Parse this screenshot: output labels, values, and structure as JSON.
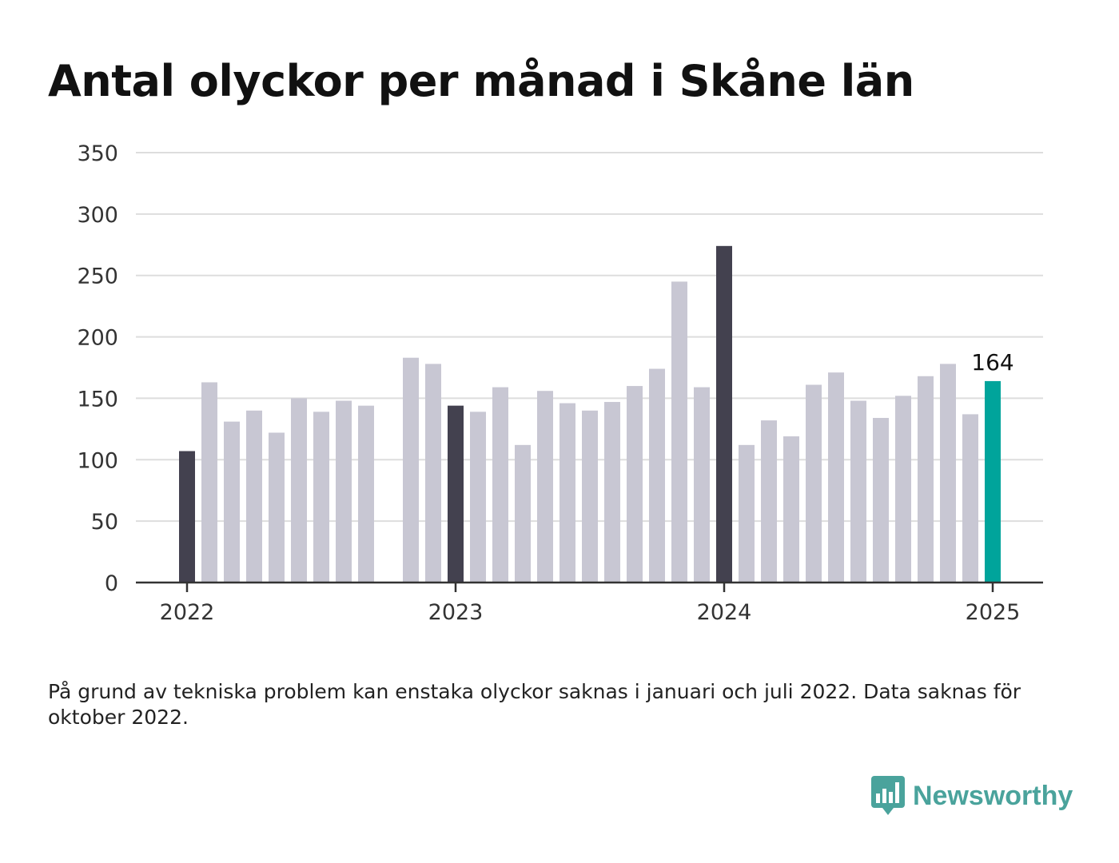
{
  "title": "Antal olyckor per månad i Skåne län",
  "note": "På grund av tekniska problem kan enstaka olyckor saknas i januari och juli 2022. Data saknas för oktober 2022.",
  "logo": {
    "text": "Newsworthy",
    "icon": "bar-chart-speech-icon"
  },
  "colors": {
    "january": "#43414f",
    "default": "#c8c7d3",
    "latest": "#00a49b",
    "grid": "#dddddd",
    "axis": "#333333"
  },
  "chart_data": {
    "type": "bar",
    "title": "Antal olyckor per månad i Skåne län",
    "xlabel": "",
    "ylabel": "",
    "ylim": [
      0,
      350
    ],
    "yticks": [
      0,
      50,
      100,
      150,
      200,
      250,
      300,
      350
    ],
    "xticks": [
      "2022",
      "2023",
      "2024",
      "2025"
    ],
    "grid": true,
    "categories": [
      "2022-01",
      "2022-02",
      "2022-03",
      "2022-04",
      "2022-05",
      "2022-06",
      "2022-07",
      "2022-08",
      "2022-09",
      "2022-10",
      "2022-11",
      "2022-12",
      "2023-01",
      "2023-02",
      "2023-03",
      "2023-04",
      "2023-05",
      "2023-06",
      "2023-07",
      "2023-08",
      "2023-09",
      "2023-10",
      "2023-11",
      "2023-12",
      "2024-01",
      "2024-02",
      "2024-03",
      "2024-04",
      "2024-05",
      "2024-06",
      "2024-07",
      "2024-08",
      "2024-09",
      "2024-10",
      "2024-11",
      "2024-12",
      "2025-01"
    ],
    "values": [
      107,
      163,
      131,
      140,
      122,
      150,
      139,
      148,
      144,
      null,
      183,
      178,
      144,
      139,
      159,
      112,
      156,
      146,
      140,
      147,
      160,
      174,
      245,
      159,
      274,
      112,
      132,
      119,
      161,
      171,
      148,
      134,
      152,
      168,
      178,
      137,
      164
    ],
    "annotation": {
      "category": "2025-01",
      "label": "164"
    }
  }
}
